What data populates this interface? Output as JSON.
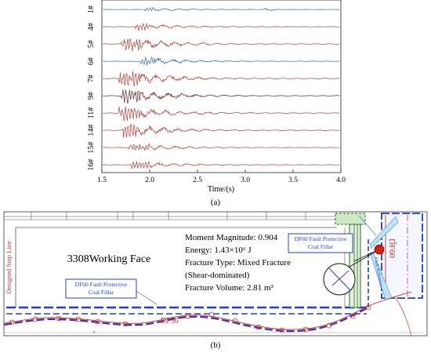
{
  "panel_a": {
    "label": "(a)",
    "chart_data": {
      "type": "line",
      "xlabel": "Time/(s)",
      "ylabel": "",
      "xlim": [
        1.5,
        4.0
      ],
      "x_ticks": [
        "1.5",
        "2.0",
        "2.5",
        "3.0",
        "3.5",
        "4.0"
      ],
      "grid": false,
      "series": [
        {
          "name": "1#",
          "color": "#2d6fb5",
          "onset": 1.95,
          "strong_until": 2.05,
          "amplitude": 0.25,
          "late_burst": 3.25
        },
        {
          "name": "4#",
          "color": "#b5413b",
          "onset": 1.85,
          "strong_until": 2.0,
          "amplitude": 0.45
        },
        {
          "name": "5#",
          "color": "#b5413b",
          "onset": 1.7,
          "strong_until": 1.9,
          "amplitude": 0.9
        },
        {
          "name": "6#",
          "color": "#2d6fb5",
          "onset": 1.9,
          "strong_until": 2.05,
          "amplitude": 0.55
        },
        {
          "name": "7#",
          "color": "#b5413b",
          "onset": 1.68,
          "strong_until": 1.9,
          "amplitude": 0.95
        },
        {
          "name": "9#",
          "color": "#6b2a26",
          "onset": 1.7,
          "strong_until": 1.9,
          "amplitude": 0.95
        },
        {
          "name": "11#",
          "color": "#b5413b",
          "onset": 1.68,
          "strong_until": 1.9,
          "amplitude": 0.95
        },
        {
          "name": "14#",
          "color": "#b5413b",
          "onset": 1.72,
          "strong_until": 1.88,
          "amplitude": 0.9
        },
        {
          "name": "15#",
          "color": "#b5413b",
          "onset": 1.78,
          "strong_until": 2.0,
          "amplitude": 0.45
        },
        {
          "name": "16#",
          "color": "#b5413b",
          "onset": 1.8,
          "strong_until": 2.0,
          "amplitude": 0.45
        }
      ]
    }
  },
  "panel_b": {
    "label": "(b)",
    "working_face": "3308Working Face",
    "stop_line": "Designed Stop Line",
    "fault_name_right": "DF60",
    "fault_name_bottom": "DF56",
    "fault_activation": "Fault Activation",
    "filler_top_right": [
      "DF60 Fault Protective",
      "Coal Fillar"
    ],
    "filler_bottom": [
      "DF60 Fault Protective",
      "Coal Fillar"
    ],
    "event": {
      "lines": [
        "Moment Magnitude: 0.904",
        "Energy: 1.43×10⁶ J",
        "Fracture Type: Mixed Fracture",
        "(Shear-dominated)",
        "Fracture Volume: 2.81 m³"
      ]
    },
    "colors": {
      "red_line": "#c0392b",
      "blue_dash": "#1f3fd1",
      "purple_dash": "#5a2aa0",
      "green_fill": "#cfe7c3"
    }
  }
}
